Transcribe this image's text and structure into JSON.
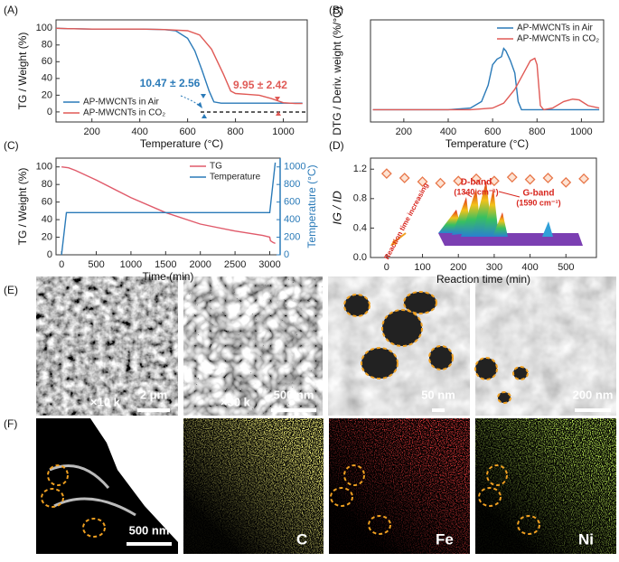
{
  "panel_labels": [
    "(A)",
    "(B)",
    "(C)",
    "(D)",
    "(E)",
    "(F)"
  ],
  "chart_data": [
    {
      "type": "line",
      "xlabel": "Temperature (°C)",
      "ylabel": "TG / Weight (%)",
      "xlim": [
        50,
        1100
      ],
      "xticks": [
        200,
        400,
        600,
        800,
        1000
      ],
      "ylim": [
        -12,
        110
      ],
      "yticks": [
        0,
        20,
        40,
        60,
        80,
        100
      ],
      "legend": "lower left",
      "series": [
        {
          "name": "AP-MWCNTs in Air",
          "color": "#2a7ab8",
          "x": [
            50,
            100,
            200,
            300,
            400,
            500,
            550,
            600,
            630,
            660,
            690,
            710,
            740,
            800,
            900,
            1000,
            1080
          ],
          "values": [
            100,
            99.5,
            99,
            99,
            99,
            98.5,
            97,
            88,
            73,
            50,
            25,
            12,
            10.5,
            10.5,
            10.5,
            10.5,
            10.5
          ]
        },
        {
          "name": "AP-MWCNTs in CO₂",
          "color": "#e05a56",
          "x": [
            50,
            100,
            200,
            300,
            400,
            500,
            600,
            650,
            700,
            750,
            780,
            800,
            850,
            900,
            950,
            1000,
            1050,
            1080
          ],
          "values": [
            100,
            99.5,
            99,
            99,
            99,
            98.5,
            97,
            92,
            75,
            45,
            25,
            22,
            21,
            20,
            16,
            11,
            10,
            10
          ]
        }
      ],
      "annotations": [
        {
          "text": "10.47 ± 2.56",
          "color": "#2a7ab8"
        },
        {
          "text": "9.95 ± 2.42",
          "color": "#e05a56"
        }
      ]
    },
    {
      "type": "line",
      "xlabel": "Temperature (°C)",
      "ylabel": "DTG / Deriv. weight (%/°C)",
      "xlim": [
        50,
        1100
      ],
      "xticks": [
        200,
        400,
        600,
        800,
        1000
      ],
      "ylim": [
        -0.15,
        1.1
      ],
      "legend": "upper right",
      "series": [
        {
          "name": "AP-MWCNTs in Air",
          "color": "#2a7ab8",
          "x": [
            60,
            200,
            400,
            500,
            550,
            580,
            600,
            620,
            640,
            650,
            660,
            680,
            700,
            715,
            730,
            800,
            1000,
            1080
          ],
          "values": [
            0,
            0,
            0,
            0.02,
            0.1,
            0.3,
            0.55,
            0.62,
            0.65,
            0.75,
            0.72,
            0.6,
            0.45,
            0.1,
            0,
            0,
            0,
            0
          ]
        },
        {
          "name": "AP-MWCNTs in CO₂",
          "color": "#e05a56",
          "x": [
            60,
            200,
            400,
            500,
            600,
            650,
            700,
            740,
            770,
            790,
            800,
            815,
            830,
            870,
            920,
            960,
            990,
            1030,
            1080
          ],
          "values": [
            0,
            0,
            0,
            0,
            0.02,
            0.08,
            0.25,
            0.45,
            0.6,
            0.63,
            0.55,
            0.05,
            0,
            0.02,
            0.1,
            0.13,
            0.12,
            0.05,
            0.02
          ]
        }
      ]
    },
    {
      "type": "line",
      "xlabel": "Time (min)",
      "ylabel": "TG / Weight (%)",
      "y2label": "Temperature (°C)",
      "xlim": [
        -80,
        3150
      ],
      "xticks": [
        0,
        500,
        1000,
        1500,
        2000,
        2500,
        3000
      ],
      "ylim": [
        0,
        110
      ],
      "yticks": [
        0,
        20,
        40,
        60,
        80,
        100
      ],
      "y2lim": [
        0,
        1100
      ],
      "y2ticks": [
        0,
        200,
        400,
        600,
        800,
        1000
      ],
      "legend": "upper right",
      "series": [
        {
          "name": "TG",
          "color": "#e05a6a",
          "x": [
            0,
            100,
            200,
            500,
            1000,
            1500,
            2000,
            2500,
            2900,
            3000,
            3010,
            3050,
            3080
          ],
          "values": [
            100,
            99,
            96,
            85,
            65,
            48,
            35,
            27,
            22,
            20,
            16,
            14,
            13
          ]
        },
        {
          "name": "Temperature",
          "color": "#2a7ab8",
          "axis": "y2",
          "x": [
            0,
            70,
            100,
            3000,
            3080
          ],
          "values": [
            0,
            480,
            480,
            480,
            1050
          ]
        }
      ]
    },
    {
      "type": "scatter",
      "xlabel": "Reaction time (min)",
      "ylabel": "IG / ID",
      "xlim": [
        -45,
        585
      ],
      "xticks": [
        0,
        100,
        200,
        300,
        400,
        500
      ],
      "ylim": [
        0,
        1.35
      ],
      "yticks": [
        {
          "value": 0,
          "label": "0.0"
        },
        0.4,
        0.8,
        1.2
      ],
      "series": [
        {
          "color": "#e8774a",
          "x": [
            0,
            50,
            100,
            150,
            200,
            250,
            300,
            350,
            400,
            450,
            500,
            550
          ],
          "values": [
            1.14,
            1.08,
            1.03,
            1.01,
            1.04,
            1.07,
            1.04,
            1.09,
            1.06,
            1.08,
            1.02,
            1.07
          ]
        }
      ],
      "annotations": [
        {
          "text": "D-band",
          "color": "#d8261e"
        },
        {
          "text": "(1340 cm⁻¹)",
          "color": "#d8261e"
        },
        {
          "text": "G-band",
          "color": "#d8261e"
        },
        {
          "text": "(1590 cm⁻¹)",
          "color": "#d8261e"
        },
        {
          "text": "Reaction time increasing",
          "color": "#d8261e"
        }
      ]
    }
  ],
  "panel_E": [
    {
      "magnification": "×10 k",
      "scale_bar": "2 μm"
    },
    {
      "magnification": "×50 k",
      "scale_bar": "500 nm"
    },
    {
      "scale_bar": "50 nm"
    },
    {
      "scale_bar": "200 nm"
    }
  ],
  "panel_F": [
    {
      "scale_bar": "500 nm"
    },
    {
      "element": "C"
    },
    {
      "element": "Fe"
    },
    {
      "element": "Ni"
    }
  ]
}
